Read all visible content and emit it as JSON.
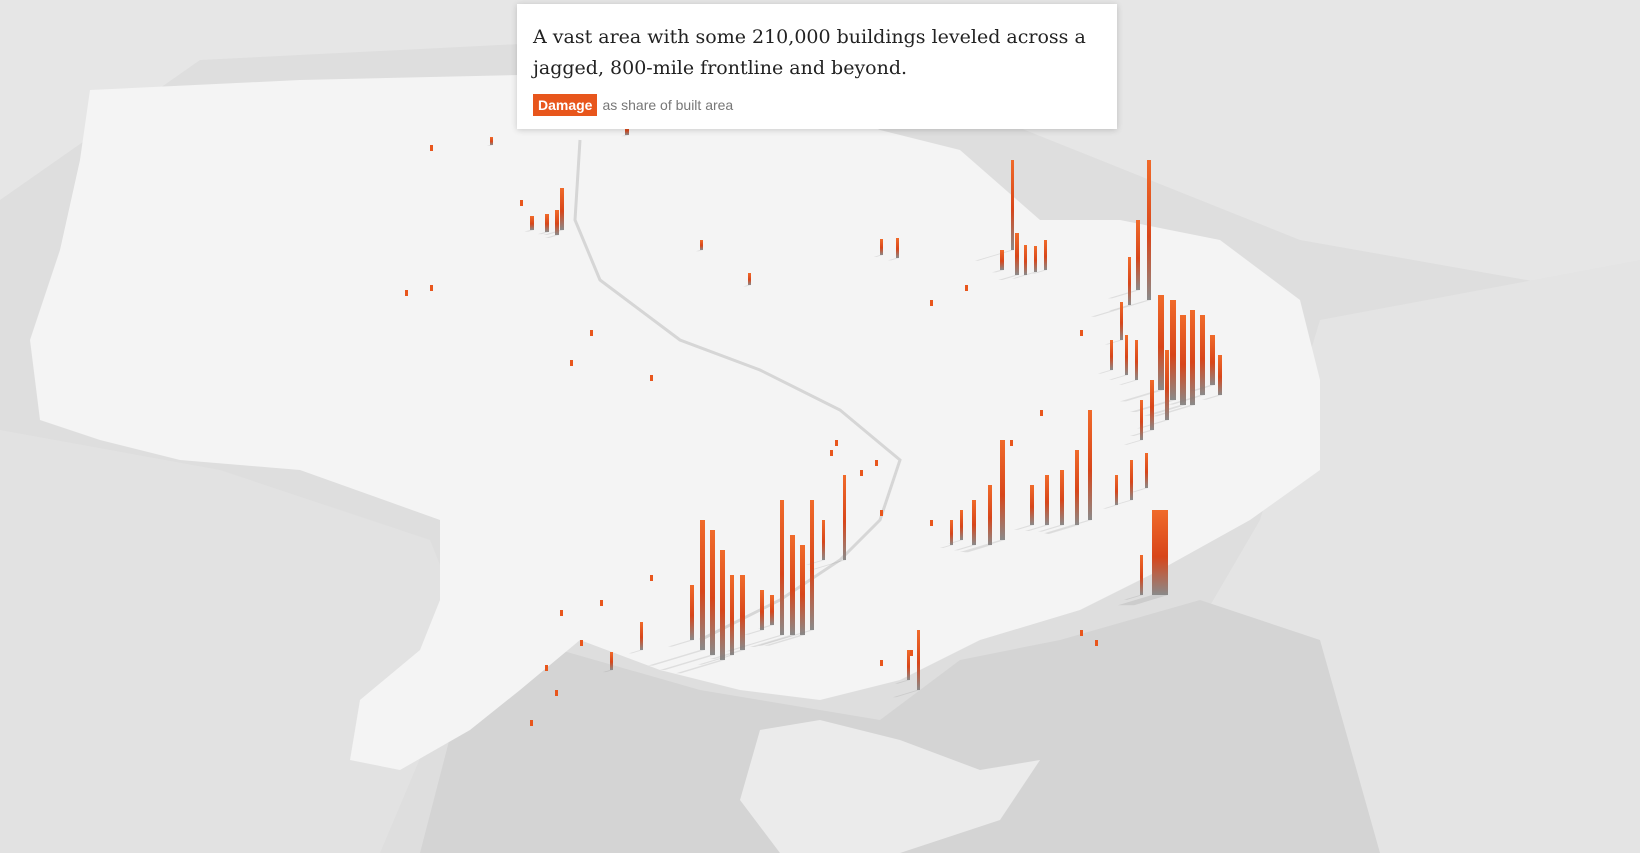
{
  "caption": {
    "text": "A vast area with some 210,000 buildings leveled across a jagged, 800-mile frontline and beyond.",
    "legend_label": "Damage",
    "legend_suffix": "as share of built area"
  },
  "colors": {
    "background": "#dedede",
    "land": "#f4f4f4",
    "neighbor_land": "#e4e4e4",
    "sea": "#d2d2d2",
    "damage": "#e8561c",
    "damage_dark": "#c33a12"
  }
}
